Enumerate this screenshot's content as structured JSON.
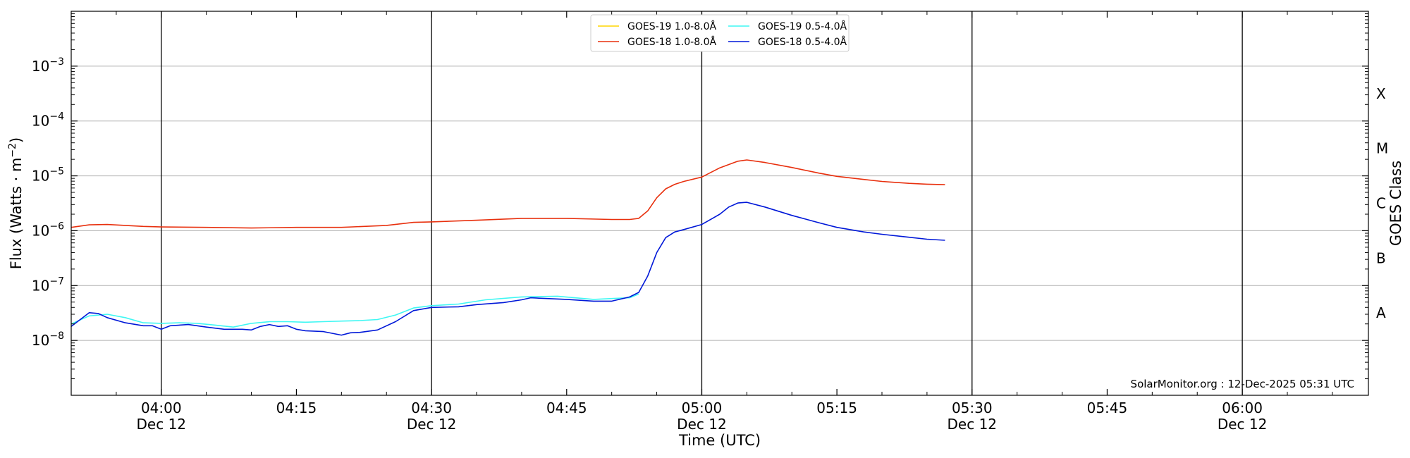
{
  "chart_data": {
    "type": "line",
    "xlabel": "Time (UTC)",
    "ylabel": "Flux (Watts · m",
    "ylabel_sup": "−2",
    "ylabel_close": ")",
    "y2label": "GOES Class",
    "y_scale": "log",
    "ylim": [
      1e-09,
      0.01
    ],
    "xlim": [
      "03:50",
      "06:14"
    ],
    "grid": "horizontal",
    "legend_position": "top-center",
    "y_ticks": [
      {
        "value": 1e-08,
        "base": "10",
        "exp": "−8"
      },
      {
        "value": 1e-07,
        "base": "10",
        "exp": "−7"
      },
      {
        "value": 1e-06,
        "base": "10",
        "exp": "−6"
      },
      {
        "value": 1e-05,
        "base": "10",
        "exp": "−5"
      },
      {
        "value": 0.0001,
        "base": "10",
        "exp": "−4"
      },
      {
        "value": 0.001,
        "base": "10",
        "exp": "−3"
      }
    ],
    "goes_classes": [
      {
        "label": "A",
        "value": 3.16e-08
      },
      {
        "label": "B",
        "value": 3.16e-07
      },
      {
        "label": "C",
        "value": 3.16e-06
      },
      {
        "label": "M",
        "value": 3.16e-05
      },
      {
        "label": "X",
        "value": 0.000316
      }
    ],
    "x_ticks": [
      {
        "time": "04:00",
        "label": "04:00",
        "date": "Dec 12",
        "vline": true
      },
      {
        "time": "04:15",
        "label": "04:15",
        "date": "",
        "vline": false
      },
      {
        "time": "04:30",
        "label": "04:30",
        "date": "Dec 12",
        "vline": true
      },
      {
        "time": "04:45",
        "label": "04:45",
        "date": "",
        "vline": false
      },
      {
        "time": "05:00",
        "label": "05:00",
        "date": "Dec 12",
        "vline": true
      },
      {
        "time": "05:15",
        "label": "05:15",
        "date": "",
        "vline": false
      },
      {
        "time": "05:30",
        "label": "05:30",
        "date": "Dec 12",
        "vline": true
      },
      {
        "time": "05:45",
        "label": "05:45",
        "date": "",
        "vline": false
      },
      {
        "time": "06:00",
        "label": "06:00",
        "date": "Dec 12",
        "vline": true
      }
    ],
    "series": [
      {
        "name": "GOES-19 1.0-8.0Å",
        "color": "#ffd500",
        "x": [],
        "y": []
      },
      {
        "name": "GOES-18 1.0-8.0Å",
        "color": "#e8300e",
        "x": [
          "03:50",
          "03:52",
          "03:54",
          "03:56",
          "03:58",
          "04:00",
          "04:05",
          "04:10",
          "04:15",
          "04:20",
          "04:25",
          "04:28",
          "04:30",
          "04:35",
          "04:40",
          "04:45",
          "04:50",
          "04:52",
          "04:53",
          "04:54",
          "04:55",
          "04:56",
          "04:57",
          "04:58",
          "05:00",
          "05:02",
          "05:04",
          "05:05",
          "05:07",
          "05:10",
          "05:13",
          "05:15",
          "05:18",
          "05:20",
          "05:23",
          "05:25",
          "05:27"
        ],
        "y": [
          1.15e-06,
          1.28e-06,
          1.3e-06,
          1.25e-06,
          1.2e-06,
          1.17e-06,
          1.15e-06,
          1.12e-06,
          1.15e-06,
          1.15e-06,
          1.25e-06,
          1.42e-06,
          1.45e-06,
          1.55e-06,
          1.68e-06,
          1.68e-06,
          1.6e-06,
          1.6e-06,
          1.68e-06,
          2.3e-06,
          4e-06,
          5.8e-06,
          7e-06,
          7.9e-06,
          9.5e-06,
          1.4e-05,
          1.85e-05,
          1.95e-05,
          1.75e-05,
          1.42e-05,
          1.12e-05,
          9.8e-06,
          8.6e-06,
          7.9e-06,
          7.3e-06,
          7.05e-06,
          6.9e-06
        ]
      },
      {
        "name": "GOES-19 0.5-4.0Å",
        "color": "#3ff7f3",
        "x": [
          "03:50",
          "03:52",
          "03:54",
          "03:56",
          "03:58",
          "04:00",
          "04:02",
          "04:04",
          "04:06",
          "04:08",
          "04:10",
          "04:12",
          "04:14",
          "04:16",
          "04:18",
          "04:20",
          "04:22",
          "04:24",
          "04:26",
          "04:28",
          "04:30",
          "04:33",
          "04:36",
          "04:40",
          "04:44",
          "04:48",
          "04:50",
          "04:52",
          "04:53"
        ],
        "y": [
          2e-08,
          2.8e-08,
          3e-08,
          2.6e-08,
          2.1e-08,
          2.05e-08,
          2.1e-08,
          2.05e-08,
          1.9e-08,
          1.75e-08,
          2.05e-08,
          2.2e-08,
          2.2e-08,
          2.15e-08,
          2.2e-08,
          2.25e-08,
          2.3e-08,
          2.4e-08,
          2.9e-08,
          3.9e-08,
          4.3e-08,
          4.6e-08,
          5.5e-08,
          6.2e-08,
          6.4e-08,
          5.6e-08,
          5.8e-08,
          6e-08,
          7e-08
        ]
      },
      {
        "name": "GOES-18 0.5-4.0Å",
        "color": "#0018d8",
        "x": [
          "03:50",
          "03:52",
          "03:53",
          "03:54",
          "03:56",
          "03:58",
          "03:59",
          "04:00",
          "04:01",
          "04:03",
          "04:05",
          "04:07",
          "04:09",
          "04:10",
          "04:11",
          "04:12",
          "04:13",
          "04:14",
          "04:15",
          "04:16",
          "04:18",
          "04:20",
          "04:21",
          "04:22",
          "04:24",
          "04:26",
          "04:28",
          "04:30",
          "04:33",
          "04:35",
          "04:38",
          "04:40",
          "04:41",
          "04:45",
          "04:48",
          "04:50",
          "04:52",
          "04:53",
          "04:54",
          "04:55",
          "04:56",
          "04:57",
          "04:58",
          "05:00",
          "05:02",
          "05:03",
          "05:04",
          "05:05",
          "05:07",
          "05:10",
          "05:13",
          "05:15",
          "05:18",
          "05:20",
          "05:23",
          "05:25",
          "05:27"
        ],
        "y": [
          1.8e-08,
          3.2e-08,
          3.1e-08,
          2.6e-08,
          2.1e-08,
          1.85e-08,
          1.85e-08,
          1.6e-08,
          1.85e-08,
          1.95e-08,
          1.75e-08,
          1.6e-08,
          1.6e-08,
          1.55e-08,
          1.8e-08,
          1.95e-08,
          1.8e-08,
          1.85e-08,
          1.6e-08,
          1.5e-08,
          1.45e-08,
          1.25e-08,
          1.38e-08,
          1.4e-08,
          1.55e-08,
          2.2e-08,
          3.5e-08,
          4e-08,
          4.1e-08,
          4.5e-08,
          4.9e-08,
          5.5e-08,
          6e-08,
          5.6e-08,
          5.2e-08,
          5.2e-08,
          6.2e-08,
          7.5e-08,
          1.5e-07,
          4e-07,
          7.5e-07,
          9.5e-07,
          1.05e-06,
          1.3e-06,
          2e-06,
          2.7e-06,
          3.2e-06,
          3.3e-06,
          2.7e-06,
          1.9e-06,
          1.4e-06,
          1.15e-06,
          9.5e-07,
          8.6e-07,
          7.6e-07,
          7e-07,
          6.7e-07
        ]
      }
    ],
    "credit": "SolarMonitor.org : 12-Dec-2025 05:31 UTC"
  }
}
